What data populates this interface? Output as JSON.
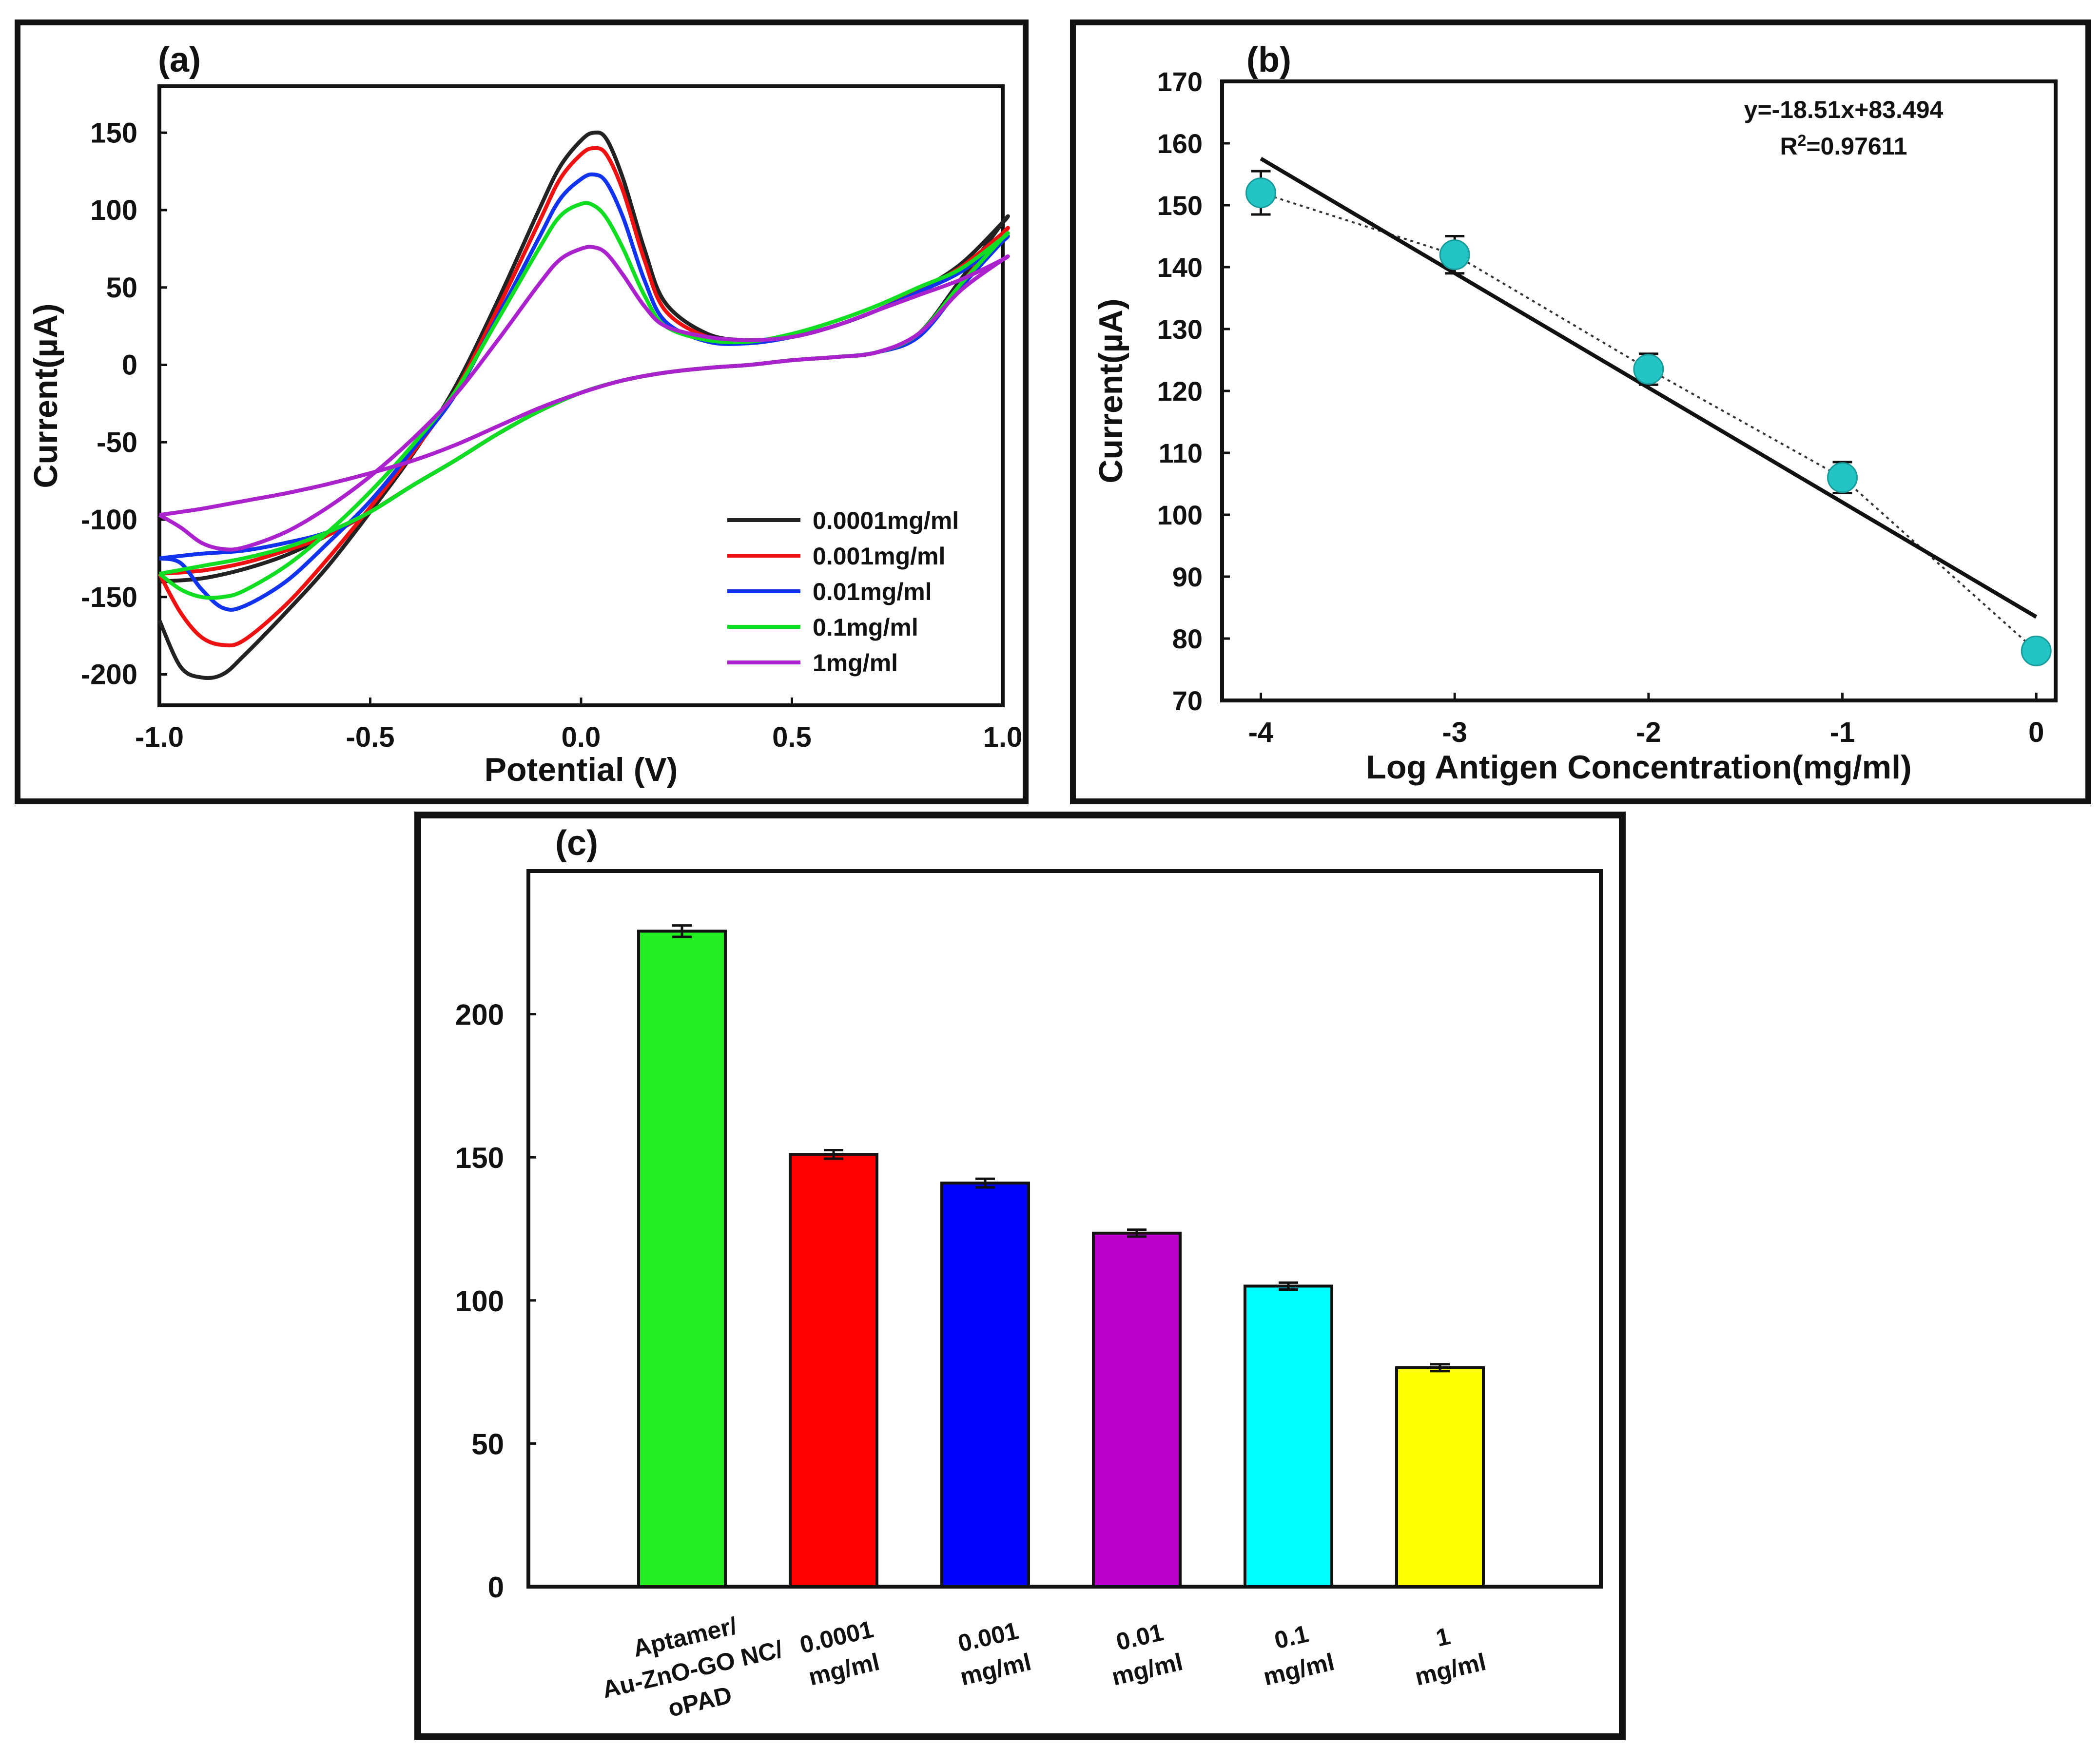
{
  "chart_data": [
    {
      "panel_label": "(a)",
      "type": "line",
      "xlabel": "Potential (V)",
      "ylabel": "Current(µA)",
      "xlim": [
        -1.0,
        1.0
      ],
      "ylim": [
        -220,
        180
      ],
      "xticks": [
        -1.0,
        -0.5,
        0.0,
        0.5,
        1.0
      ],
      "xtick_labels": [
        "-1.0",
        "-0.5",
        "0.0",
        "0.5",
        "1.0"
      ],
      "yticks": [
        -200,
        -150,
        -100,
        -50,
        0,
        50,
        100,
        150
      ],
      "ytick_labels": [
        "-200",
        "-150",
        "-100",
        "-50",
        "0",
        "50",
        "100",
        "150"
      ],
      "legend_position": "bottom-right",
      "series": [
        {
          "name": "0.0001mg/ml",
          "color": "#222222",
          "x": [
            -1.0,
            -0.95,
            -0.9,
            -0.85,
            -0.8,
            -0.7,
            -0.6,
            -0.5,
            -0.4,
            -0.3,
            -0.2,
            -0.1,
            -0.05,
            0.0,
            0.03,
            0.06,
            0.1,
            0.15,
            0.2,
            0.3,
            0.4,
            0.5,
            0.6,
            0.7,
            0.8,
            0.9,
            1.0,
            1.0,
            0.9,
            0.8,
            0.7,
            0.6,
            0.5,
            0.4,
            0.3,
            0.2,
            0.1,
            0.0,
            -0.1,
            -0.2,
            -0.3,
            -0.4,
            -0.5,
            -0.6,
            -0.7,
            -0.8,
            -0.9,
            -1.0
          ],
          "y": [
            -165,
            -195,
            -202,
            -200,
            -188,
            -160,
            -130,
            -95,
            -58,
            -15,
            40,
            100,
            128,
            145,
            150,
            146,
            120,
            75,
            40,
            20,
            16,
            18,
            25,
            35,
            48,
            65,
            92,
            92,
            55,
            20,
            8,
            5,
            3,
            0,
            -2,
            -5,
            -10,
            -18,
            -30,
            -45,
            -62,
            -78,
            -95,
            -110,
            -123,
            -132,
            -138,
            -140
          ]
        },
        {
          "name": "0.001mg/ml",
          "color": "#ee1111",
          "x": [
            -1.0,
            -0.95,
            -0.9,
            -0.85,
            -0.8,
            -0.7,
            -0.6,
            -0.5,
            -0.4,
            -0.3,
            -0.2,
            -0.1,
            -0.05,
            0.0,
            0.03,
            0.06,
            0.1,
            0.15,
            0.2,
            0.3,
            0.4,
            0.5,
            0.6,
            0.7,
            0.8,
            0.9,
            1.0,
            1.0,
            0.9,
            0.8,
            0.7,
            0.6,
            0.5,
            0.4,
            0.3,
            0.2,
            0.1,
            0.0,
            -0.1,
            -0.2,
            -0.3,
            -0.4,
            -0.5,
            -0.6,
            -0.7,
            -0.8,
            -0.9,
            -1.0
          ],
          "y": [
            -135,
            -160,
            -176,
            -181,
            -178,
            -155,
            -125,
            -92,
            -57,
            -18,
            35,
            92,
            120,
            136,
            140,
            136,
            112,
            68,
            35,
            18,
            15,
            18,
            25,
            35,
            48,
            63,
            85,
            85,
            52,
            20,
            8,
            5,
            3,
            0,
            -2,
            -5,
            -10,
            -18,
            -30,
            -45,
            -62,
            -78,
            -95,
            -110,
            -120,
            -128,
            -133,
            -135
          ]
        },
        {
          "name": "0.01mg/ml",
          "color": "#1133ee",
          "x": [
            -1.0,
            -0.95,
            -0.9,
            -0.85,
            -0.8,
            -0.7,
            -0.6,
            -0.5,
            -0.4,
            -0.3,
            -0.2,
            -0.1,
            -0.05,
            0.0,
            0.03,
            0.06,
            0.1,
            0.15,
            0.2,
            0.3,
            0.4,
            0.5,
            0.6,
            0.7,
            0.8,
            0.9,
            1.0,
            1.0,
            0.9,
            0.8,
            0.7,
            0.6,
            0.5,
            0.4,
            0.3,
            0.2,
            0.1,
            0.0,
            -0.1,
            -0.2,
            -0.3,
            -0.4,
            -0.5,
            -0.6,
            -0.7,
            -0.8,
            -0.9,
            -1.0
          ],
          "y": [
            -125,
            -128,
            -145,
            -157,
            -156,
            -140,
            -115,
            -88,
            -55,
            -20,
            30,
            82,
            107,
            120,
            123,
            118,
            95,
            55,
            28,
            15,
            14,
            18,
            25,
            35,
            47,
            60,
            80,
            80,
            50,
            18,
            8,
            5,
            3,
            0,
            -2,
            -5,
            -10,
            -18,
            -30,
            -45,
            -62,
            -78,
            -95,
            -108,
            -115,
            -120,
            -122,
            -125
          ]
        },
        {
          "name": "0.1mg/ml",
          "color": "#11dd22",
          "x": [
            -1.0,
            -0.95,
            -0.9,
            -0.85,
            -0.8,
            -0.7,
            -0.6,
            -0.5,
            -0.4,
            -0.3,
            -0.2,
            -0.1,
            -0.05,
            0.0,
            0.03,
            0.06,
            0.1,
            0.15,
            0.2,
            0.3,
            0.4,
            0.5,
            0.6,
            0.7,
            0.8,
            0.9,
            1.0,
            1.0,
            0.9,
            0.8,
            0.7,
            0.6,
            0.5,
            0.4,
            0.3,
            0.2,
            0.1,
            0.0,
            -0.1,
            -0.2,
            -0.3,
            -0.4,
            -0.5,
            -0.6,
            -0.7,
            -0.8,
            -0.9,
            -1.0
          ],
          "y": [
            -135,
            -145,
            -150,
            -150,
            -146,
            -130,
            -108,
            -82,
            -52,
            -18,
            28,
            75,
            96,
            104,
            103,
            95,
            75,
            45,
            25,
            16,
            15,
            20,
            28,
            38,
            50,
            62,
            82,
            82,
            52,
            20,
            8,
            5,
            3,
            0,
            -2,
            -5,
            -10,
            -18,
            -30,
            -45,
            -62,
            -78,
            -95,
            -108,
            -118,
            -125,
            -130,
            -135
          ]
        },
        {
          "name": "1mg/ml",
          "color": "#aa22cc",
          "x": [
            -1.0,
            -0.95,
            -0.9,
            -0.85,
            -0.8,
            -0.7,
            -0.6,
            -0.5,
            -0.4,
            -0.3,
            -0.2,
            -0.1,
            -0.05,
            0.0,
            0.03,
            0.06,
            0.1,
            0.15,
            0.2,
            0.3,
            0.4,
            0.5,
            0.6,
            0.7,
            0.8,
            0.9,
            1.0,
            1.0,
            0.9,
            0.8,
            0.7,
            0.6,
            0.5,
            0.4,
            0.3,
            0.2,
            0.1,
            0.0,
            -0.1,
            -0.2,
            -0.3,
            -0.4,
            -0.5,
            -0.6,
            -0.7,
            -0.8,
            -0.9,
            -1.0
          ],
          "y": [
            -97,
            -105,
            -115,
            -119,
            -118,
            -108,
            -92,
            -72,
            -48,
            -20,
            15,
            52,
            68,
            75,
            76,
            72,
            58,
            38,
            25,
            18,
            16,
            18,
            25,
            35,
            45,
            55,
            68,
            68,
            48,
            20,
            8,
            5,
            3,
            0,
            -2,
            -5,
            -10,
            -18,
            -28,
            -40,
            -52,
            -62,
            -70,
            -77,
            -83,
            -88,
            -93,
            -97
          ]
        }
      ]
    },
    {
      "panel_label": "(b)",
      "type": "scatter",
      "xlabel": "Log Antigen Concentration(mg/ml)",
      "ylabel": "Current(µA)",
      "xlim": [
        -4.2,
        0.1
      ],
      "ylim": [
        70,
        170
      ],
      "xticks": [
        -4,
        -3,
        -2,
        -1,
        0
      ],
      "xtick_labels": [
        "-4",
        "-3",
        "-2",
        "-1",
        "0"
      ],
      "yticks": [
        70,
        80,
        90,
        100,
        110,
        120,
        130,
        140,
        150,
        160,
        170
      ],
      "ytick_labels": [
        "70",
        "80",
        "90",
        "100",
        "110",
        "120",
        "130",
        "140",
        "150",
        "160",
        "170"
      ],
      "x": [
        -4,
        -3,
        -2,
        -1,
        0
      ],
      "y": [
        152,
        142,
        123.5,
        106,
        78
      ],
      "error": [
        3.5,
        3.0,
        2.5,
        2.5,
        1.5
      ],
      "point_color": "#22c4c4",
      "fit": {
        "slope": -18.51,
        "intercept": 83.494,
        "x_range": [
          -4,
          0
        ],
        "equation": "y=-18.51x+83.494",
        "r2_prefix": "R",
        "r2_sup": "2",
        "r2_value": "=0.97611"
      }
    },
    {
      "panel_label": "(c)",
      "type": "bar",
      "ylim": [
        0,
        250
      ],
      "yticks": [
        0,
        50,
        100,
        150,
        200
      ],
      "ytick_labels": [
        "0",
        "50",
        "100",
        "150",
        "200"
      ],
      "categories": [
        [
          "Aptamer/",
          "Au-ZnO-GO NC/",
          "oPAD"
        ],
        [
          "0.0001",
          "mg/ml"
        ],
        [
          "0.001",
          "mg/ml"
        ],
        [
          "0.01",
          "mg/ml"
        ],
        [
          "0.1",
          "mg/ml"
        ],
        [
          "1",
          "mg/ml"
        ]
      ],
      "values": [
        229,
        151,
        141,
        123.5,
        105,
        76.5
      ],
      "errors": [
        2,
        1.5,
        1.5,
        1.2,
        1.2,
        1.2
      ],
      "colors": [
        "#22ee22",
        "#ff0000",
        "#0000ff",
        "#bb00cc",
        "#00ffff",
        "#ffff00"
      ]
    }
  ]
}
